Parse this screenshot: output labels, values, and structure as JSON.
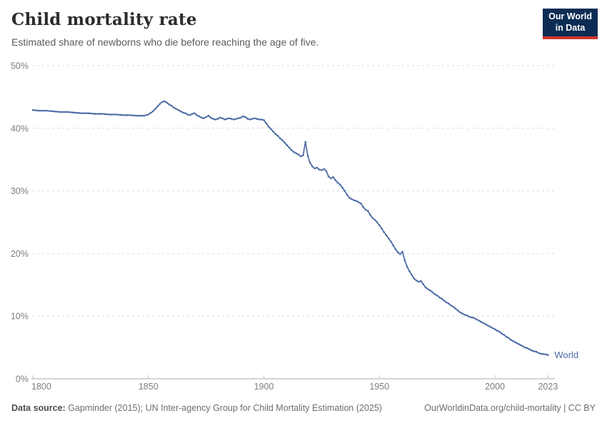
{
  "header": {
    "title": "Child mortality rate",
    "subtitle": "Estimated share of newborns who die before reaching the age of five."
  },
  "logo": {
    "line1": "Our World",
    "line2": "in Data",
    "bg_color": "#0d2c54",
    "accent_color": "#d0342c"
  },
  "footer": {
    "source_label": "Data source:",
    "source_text": " Gapminder (2015); UN Inter-agency Group for Child Mortality Estimation (2025)",
    "credit": "OurWorldinData.org/child-mortality | CC BY"
  },
  "chart_data": {
    "type": "line",
    "title": "Child mortality rate",
    "xlabel": "",
    "ylabel": "",
    "unit": "%",
    "series_label": "World",
    "line_color": "#4b6aa5",
    "grid": "horizontal-dashed",
    "grid_color": "#dcdcdc",
    "axis_color": "#a8a8a8",
    "tick_label_color": "#7e7e7e",
    "xlim": [
      1800,
      2026
    ],
    "ylim": [
      0,
      50
    ],
    "x_ticks": [
      1800,
      1850,
      1900,
      1950,
      2000,
      2023
    ],
    "y_ticks": [
      0,
      10,
      20,
      30,
      40,
      50
    ],
    "points": [
      [
        1800,
        42.9
      ],
      [
        1803,
        42.8
      ],
      [
        1806,
        42.8
      ],
      [
        1809,
        42.7
      ],
      [
        1812,
        42.6
      ],
      [
        1815,
        42.6
      ],
      [
        1818,
        42.5
      ],
      [
        1821,
        42.4
      ],
      [
        1824,
        42.4
      ],
      [
        1827,
        42.3
      ],
      [
        1830,
        42.3
      ],
      [
        1833,
        42.2
      ],
      [
        1836,
        42.2
      ],
      [
        1839,
        42.1
      ],
      [
        1842,
        42.1
      ],
      [
        1845,
        42.0
      ],
      [
        1848,
        42.0
      ],
      [
        1850,
        42.2
      ],
      [
        1852,
        42.7
      ],
      [
        1854,
        43.5
      ],
      [
        1855,
        43.9
      ],
      [
        1856,
        44.2
      ],
      [
        1857,
        44.3
      ],
      [
        1858,
        44.1
      ],
      [
        1859,
        43.8
      ],
      [
        1860,
        43.6
      ],
      [
        1861,
        43.3
      ],
      [
        1862,
        43.1
      ],
      [
        1863,
        42.9
      ],
      [
        1864,
        42.7
      ],
      [
        1865,
        42.5
      ],
      [
        1866,
        42.4
      ],
      [
        1867,
        42.2
      ],
      [
        1868,
        42.1
      ],
      [
        1869,
        42.3
      ],
      [
        1870,
        42.4
      ],
      [
        1871,
        42.1
      ],
      [
        1872,
        41.9
      ],
      [
        1873,
        41.7
      ],
      [
        1874,
        41.6
      ],
      [
        1875,
        41.8
      ],
      [
        1876,
        42.0
      ],
      [
        1877,
        41.7
      ],
      [
        1878,
        41.5
      ],
      [
        1879,
        41.4
      ],
      [
        1880,
        41.5
      ],
      [
        1881,
        41.7
      ],
      [
        1882,
        41.6
      ],
      [
        1883,
        41.4
      ],
      [
        1884,
        41.5
      ],
      [
        1885,
        41.6
      ],
      [
        1886,
        41.5
      ],
      [
        1887,
        41.4
      ],
      [
        1888,
        41.5
      ],
      [
        1889,
        41.6
      ],
      [
        1890,
        41.7
      ],
      [
        1891,
        41.9
      ],
      [
        1892,
        41.8
      ],
      [
        1893,
        41.5
      ],
      [
        1894,
        41.4
      ],
      [
        1895,
        41.5
      ],
      [
        1896,
        41.6
      ],
      [
        1897,
        41.5
      ],
      [
        1898,
        41.4
      ],
      [
        1899,
        41.4
      ],
      [
        1900,
        41.3
      ],
      [
        1901,
        40.8
      ],
      [
        1902,
        40.3
      ],
      [
        1903,
        39.9
      ],
      [
        1904,
        39.5
      ],
      [
        1905,
        39.1
      ],
      [
        1906,
        38.8
      ],
      [
        1907,
        38.4
      ],
      [
        1908,
        38.1
      ],
      [
        1909,
        37.7
      ],
      [
        1910,
        37.3
      ],
      [
        1911,
        36.9
      ],
      [
        1912,
        36.5
      ],
      [
        1913,
        36.2
      ],
      [
        1914,
        36.0
      ],
      [
        1915,
        35.8
      ],
      [
        1916,
        35.5
      ],
      [
        1917,
        35.7
      ],
      [
        1918,
        37.8
      ],
      [
        1919,
        35.6
      ],
      [
        1920,
        34.5
      ],
      [
        1921,
        33.9
      ],
      [
        1922,
        33.6
      ],
      [
        1923,
        33.7
      ],
      [
        1924,
        33.4
      ],
      [
        1925,
        33.3
      ],
      [
        1926,
        33.5
      ],
      [
        1927,
        33.2
      ],
      [
        1928,
        32.3
      ],
      [
        1929,
        32.0
      ],
      [
        1930,
        32.2
      ],
      [
        1931,
        31.7
      ],
      [
        1932,
        31.3
      ],
      [
        1933,
        31.0
      ],
      [
        1934,
        30.5
      ],
      [
        1935,
        30.0
      ],
      [
        1936,
        29.4
      ],
      [
        1937,
        28.9
      ],
      [
        1938,
        28.7
      ],
      [
        1939,
        28.5
      ],
      [
        1940,
        28.4
      ],
      [
        1941,
        28.2
      ],
      [
        1942,
        28.0
      ],
      [
        1943,
        27.4
      ],
      [
        1944,
        27.0
      ],
      [
        1945,
        26.8
      ],
      [
        1946,
        26.2
      ],
      [
        1947,
        25.7
      ],
      [
        1948,
        25.4
      ],
      [
        1949,
        25.0
      ],
      [
        1950,
        24.5
      ],
      [
        1951,
        24.0
      ],
      [
        1952,
        23.4
      ],
      [
        1953,
        22.9
      ],
      [
        1954,
        22.4
      ],
      [
        1955,
        21.9
      ],
      [
        1956,
        21.3
      ],
      [
        1957,
        20.7
      ],
      [
        1958,
        20.2
      ],
      [
        1959,
        19.9
      ],
      [
        1960,
        20.3
      ],
      [
        1961,
        18.9
      ],
      [
        1962,
        17.9
      ],
      [
        1963,
        17.2
      ],
      [
        1964,
        16.6
      ],
      [
        1965,
        16.0
      ],
      [
        1966,
        15.7
      ],
      [
        1967,
        15.5
      ],
      [
        1968,
        15.6
      ],
      [
        1969,
        15.1
      ],
      [
        1970,
        14.6
      ],
      [
        1971,
        14.3
      ],
      [
        1972,
        14.1
      ],
      [
        1973,
        13.8
      ],
      [
        1974,
        13.5
      ],
      [
        1975,
        13.3
      ],
      [
        1976,
        13.0
      ],
      [
        1977,
        12.8
      ],
      [
        1978,
        12.5
      ],
      [
        1979,
        12.2
      ],
      [
        1980,
        12.0
      ],
      [
        1981,
        11.7
      ],
      [
        1982,
        11.5
      ],
      [
        1983,
        11.2
      ],
      [
        1984,
        10.9
      ],
      [
        1985,
        10.6
      ],
      [
        1986,
        10.4
      ],
      [
        1987,
        10.2
      ],
      [
        1988,
        10.1
      ],
      [
        1989,
        9.9
      ],
      [
        1990,
        9.8
      ],
      [
        1991,
        9.7
      ],
      [
        1992,
        9.5
      ],
      [
        1993,
        9.3
      ],
      [
        1994,
        9.1
      ],
      [
        1995,
        8.9
      ],
      [
        1996,
        8.7
      ],
      [
        1997,
        8.5
      ],
      [
        1998,
        8.3
      ],
      [
        1999,
        8.1
      ],
      [
        2000,
        7.9
      ],
      [
        2001,
        7.7
      ],
      [
        2002,
        7.5
      ],
      [
        2003,
        7.2
      ],
      [
        2004,
        7.0
      ],
      [
        2005,
        6.7
      ],
      [
        2006,
        6.5
      ],
      [
        2007,
        6.2
      ],
      [
        2008,
        6.0
      ],
      [
        2009,
        5.8
      ],
      [
        2010,
        5.6
      ],
      [
        2011,
        5.4
      ],
      [
        2012,
        5.2
      ],
      [
        2013,
        5.0
      ],
      [
        2014,
        4.9
      ],
      [
        2015,
        4.7
      ],
      [
        2016,
        4.5
      ],
      [
        2017,
        4.4
      ],
      [
        2018,
        4.3
      ],
      [
        2019,
        4.1
      ],
      [
        2020,
        4.0
      ],
      [
        2021,
        3.95
      ],
      [
        2022,
        3.9
      ],
      [
        2023,
        3.8
      ]
    ]
  }
}
